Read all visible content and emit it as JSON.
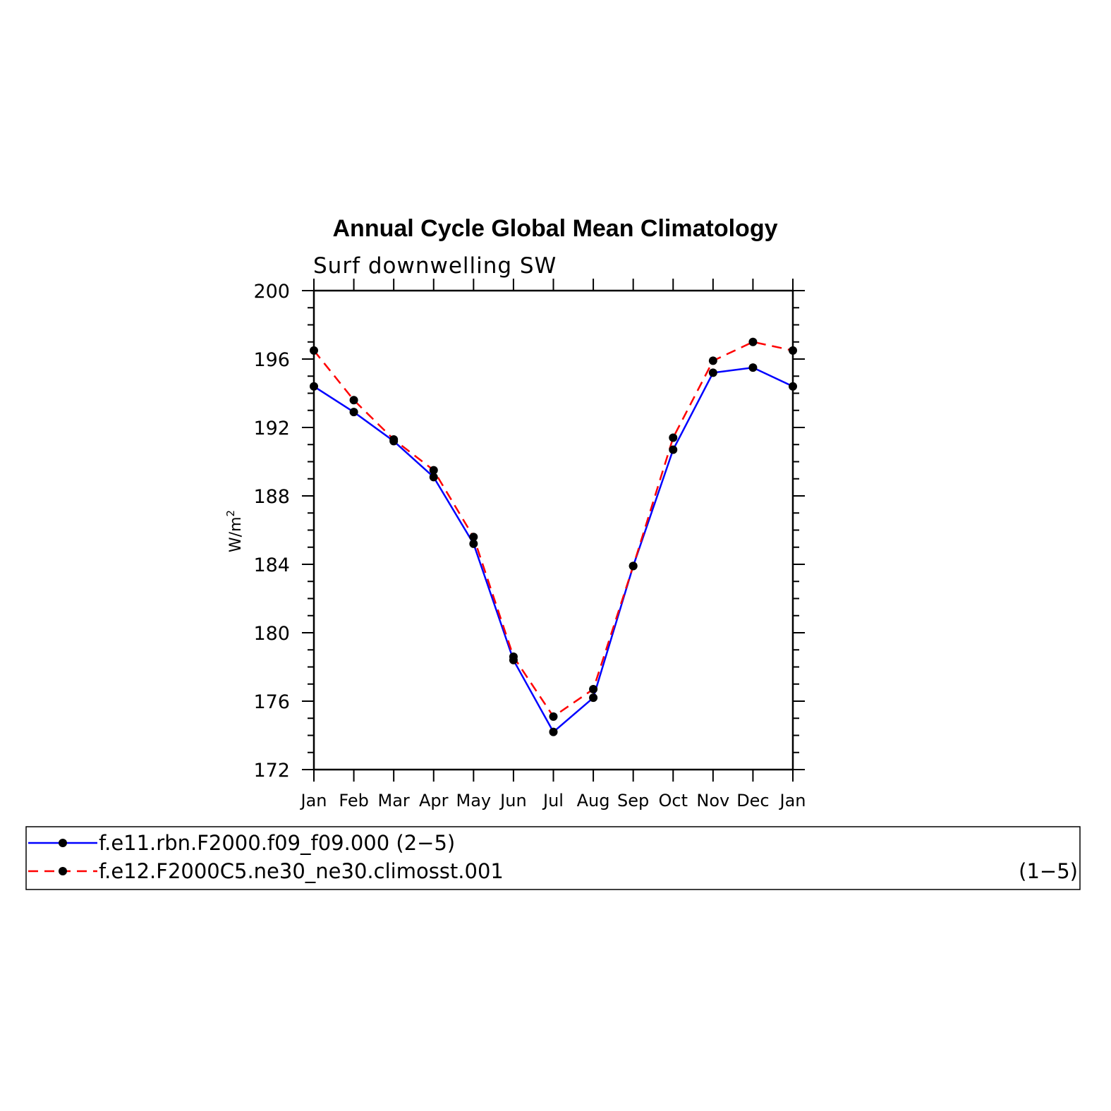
{
  "chart_data": {
    "type": "line",
    "title": "Annual Cycle Global Mean Climatology",
    "subtitle": "Surf downwelling SW",
    "ylabel": "W/m",
    "ylabel_sup": "2",
    "ylim": [
      172,
      200
    ],
    "yticks": [
      "172",
      "176",
      "180",
      "184",
      "188",
      "192",
      "196",
      "200"
    ],
    "categories": [
      "Jan",
      "Feb",
      "Mar",
      "Apr",
      "May",
      "Jun",
      "Jul",
      "Aug",
      "Sep",
      "Oct",
      "Nov",
      "Dec",
      "Jan"
    ],
    "grid": false,
    "legend_position": "bottom",
    "series": [
      {
        "name": "f.e11.rbn.F2000.f09_f09.000",
        "legend_suffix": "(2−5)",
        "color": "#0000ff",
        "dash": "solid",
        "values": [
          194.4,
          192.9,
          191.2,
          189.1,
          185.2,
          178.4,
          174.2,
          176.2,
          183.9,
          190.7,
          195.2,
          195.5,
          194.4
        ]
      },
      {
        "name": "f.e12.F2000C5.ne30_ne30.climosst.001",
        "legend_suffix": "(1−5)",
        "color": "#ff0000",
        "dash": "dashed",
        "values": [
          196.5,
          193.6,
          191.3,
          189.5,
          185.6,
          178.6,
          175.1,
          176.7,
          183.9,
          191.4,
          195.9,
          197.0,
          196.5
        ]
      }
    ]
  }
}
